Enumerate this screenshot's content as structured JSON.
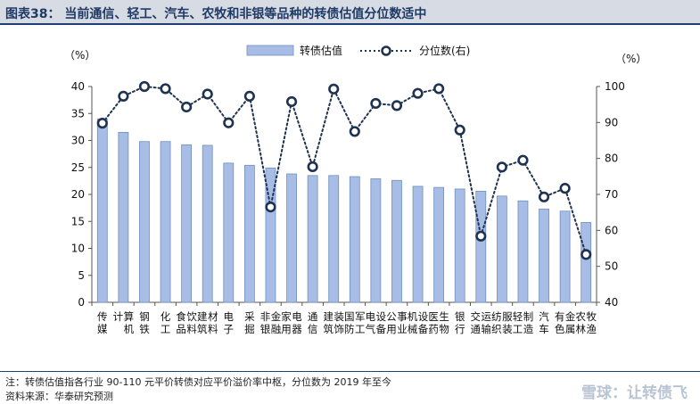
{
  "title": "图表38： 当前通信、轻工、汽车、农牧和非银等品种的转债估值分位数适中",
  "footer": {
    "note": "注：转债估值指各行业 90-110 元平价转债对应平价溢价率中枢，分位数为 2019 年至今",
    "source": "资料来源：华泰研究预测"
  },
  "watermark": "雪球：让转债飞",
  "colors": {
    "bar": "#a8bde6",
    "bar_border": "#6f8fbf",
    "line": "#1f3350",
    "title_bg": "#d6dbe4"
  },
  "chart_data": {
    "type": "bar",
    "title": "",
    "left_axis": {
      "label": "（%）",
      "ylim": [
        0,
        40
      ],
      "ticks": [
        0,
        5,
        10,
        15,
        20,
        25,
        30,
        35,
        40
      ]
    },
    "right_axis": {
      "label": "（%）",
      "ylim": [
        40,
        100
      ],
      "ticks": [
        40,
        50,
        60,
        70,
        80,
        90,
        100
      ]
    },
    "legend": {
      "placement": "top-center",
      "entries": [
        "转债估值",
        "分位数(右)"
      ]
    },
    "categories": [
      "传媒",
      "计算机",
      "钢铁",
      "化工",
      "食品饮料",
      "建筑材料",
      "电子",
      "采掘",
      "非银金融",
      "家用电器",
      "通信",
      "建筑装饰",
      "国防军工",
      "电气设备",
      "公用事业",
      "机械设备",
      "医药生物",
      "银行",
      "交通运输",
      "纺织服装",
      "轻工制造",
      "汽车",
      "有色金属",
      "农林牧渔"
    ],
    "series": [
      {
        "name": "转债估值",
        "type": "bar",
        "axis": "left",
        "values": [
          34.0,
          31.5,
          29.8,
          29.8,
          29.2,
          29.1,
          25.8,
          25.4,
          24.9,
          23.8,
          23.5,
          23.5,
          23.3,
          22.9,
          22.6,
          21.5,
          21.3,
          21.0,
          20.6,
          19.7,
          18.8,
          17.3,
          16.9,
          14.8
        ]
      },
      {
        "name": "分位数(右)",
        "type": "line",
        "axis": "right",
        "values": [
          89.8,
          97.3,
          100.0,
          99.4,
          94.3,
          97.9,
          89.9,
          97.3,
          66.5,
          95.8,
          77.7,
          99.3,
          87.5,
          95.3,
          94.7,
          98.1,
          99.4,
          87.9,
          58.4,
          77.6,
          79.5,
          69.3,
          71.7,
          53.3
        ]
      }
    ]
  }
}
